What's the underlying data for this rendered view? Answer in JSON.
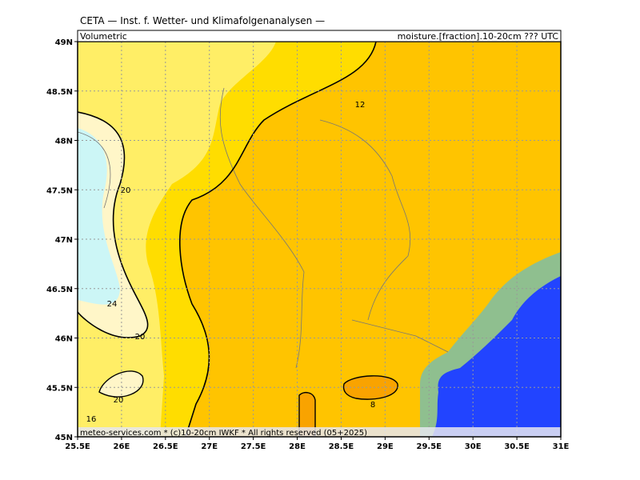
{
  "header": {
    "title": "CETA — Inst. f. Wetter- und Klimafolgenanalysen —",
    "left": "Volumetric",
    "right": "moisture.[fraction].10-20cm ??? UTC"
  },
  "footer": "meteo-services.com * (c)10-20cm IWKF * All rights reserved (05+2025)",
  "axes": {
    "lon": [
      "25.5E",
      "26E",
      "26.5E",
      "27E",
      "27.5E",
      "28E",
      "28.5E",
      "29E",
      "29.5E",
      "30E",
      "30.5E",
      "31E"
    ],
    "lat": [
      "49N",
      "48.5N",
      "48N",
      "47.5N",
      "47N",
      "46.5N",
      "46N",
      "45.5N",
      "45N"
    ]
  },
  "contour_labels": [
    "12",
    "20",
    "24",
    "20",
    "20",
    "16",
    "8"
  ]
}
